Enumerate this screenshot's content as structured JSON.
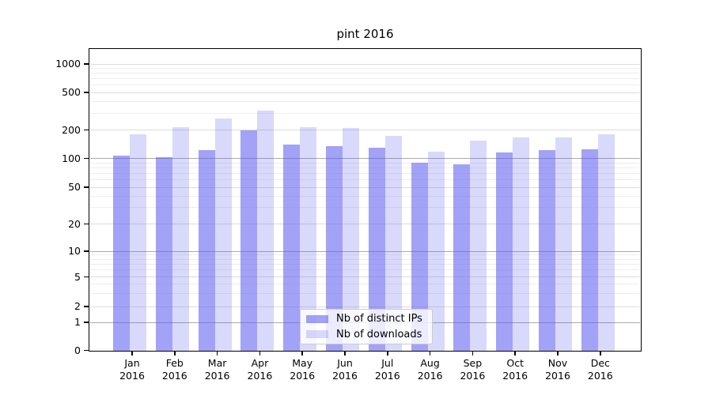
{
  "chart_data": {
    "type": "bar",
    "title": "pint 2016",
    "x_year": "2016",
    "categories": [
      "Jan",
      "Feb",
      "Mar",
      "Apr",
      "May",
      "Jun",
      "Jul",
      "Aug",
      "Sep",
      "Oct",
      "Nov",
      "Dec"
    ],
    "series": [
      {
        "name": "Nb of distinct IPs",
        "color": "rgba(90,90,240,0.56)",
        "values": [
          107,
          102,
          123,
          197,
          141,
          135,
          129,
          90,
          87,
          116,
          122,
          124
        ]
      },
      {
        "name": "Nb of downloads",
        "color": "rgba(90,90,240,0.23)",
        "values": [
          181,
          212,
          263,
          323,
          215,
          211,
          172,
          117,
          153,
          168,
          165,
          180
        ]
      }
    ],
    "yscale": "symlog",
    "y_ticks": [
      0,
      1,
      2,
      5,
      10,
      20,
      50,
      100,
      200,
      500,
      1000
    ],
    "y_minor_gridlines": [
      3,
      4,
      6,
      7,
      8,
      9,
      30,
      40,
      60,
      70,
      80,
      90,
      300,
      400,
      600,
      700,
      800,
      900
    ],
    "ylim": [
      0,
      1500
    ],
    "grid": true,
    "legend_position": "lower center",
    "xlabel": "",
    "ylabel": ""
  }
}
